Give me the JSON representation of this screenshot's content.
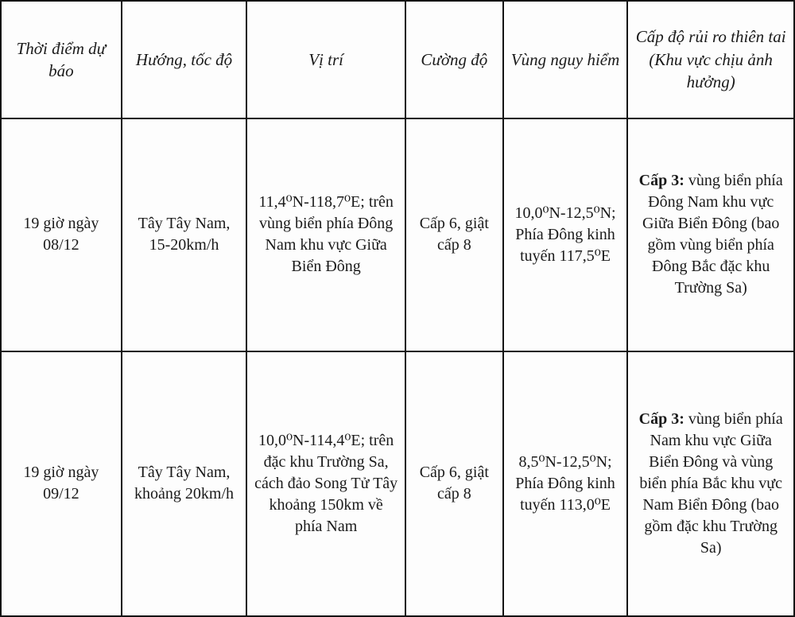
{
  "table": {
    "headers": [
      "Thời điểm dự báo",
      "Hướng, tốc độ",
      "Vị trí",
      "Cường độ",
      "Vùng nguy hiểm",
      "Cấp độ rủi ro thiên tai (Khu vực chịu ảnh hưởng)"
    ],
    "rows": [
      {
        "time": "19 giờ ngày 08/12",
        "direction": "Tây Tây Nam, 15-20km/h",
        "position": "11,4⁰N-118,7⁰E; trên vùng biển phía Đông Nam khu vực Giữa Biển Đông",
        "intensity": "Cấp 6, giật cấp 8",
        "danger_zone": "10,0⁰N-12,5⁰N; Phía Đông kinh tuyến 117,5⁰E",
        "risk_bold": "Cấp 3:",
        "risk_text": " vùng biển phía Đông Nam khu vực Giữa Biển Đông (bao gồm vùng biển phía Đông Bắc đặc khu Trường Sa)"
      },
      {
        "time": "19 giờ ngày 09/12",
        "direction": "Tây Tây Nam, khoảng 20km/h",
        "position": "10,0⁰N-114,4⁰E; trên đặc khu Trường Sa, cách đảo Song Tử Tây khoảng 150km về phía Nam",
        "intensity": "Cấp 6, giật cấp 8",
        "danger_zone": "8,5⁰N-12,5⁰N; Phía Đông kinh tuyến 113,0⁰E",
        "risk_bold": "Cấp 3:",
        "risk_text": " vùng biển phía Nam khu vực Giữa Biển Đông và vùng biển phía Bắc khu vực Nam Biển Đông (bao gồm đặc khu Trường Sa)"
      }
    ]
  }
}
